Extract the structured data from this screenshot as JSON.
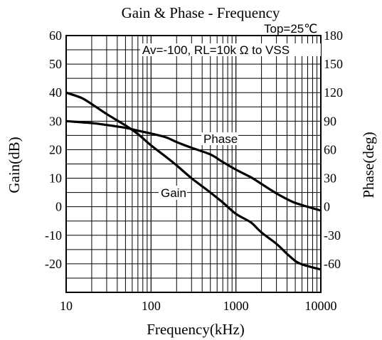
{
  "chart_data": {
    "type": "line",
    "title": "Gain & Phase - Frequency",
    "annotations": {
      "condition_top": "Top=25℃",
      "condition_av": "Av=-100,  RL=10k Ω to VSS",
      "series_label_phase": "Phase",
      "series_label_gain": "Gain"
    },
    "xlabel": "Frequency(kHz)",
    "ylabel_left": "Gain(dB)",
    "ylabel_right": "Phase(deg)",
    "x_scale": "log",
    "xlim": [
      10,
      10000
    ],
    "ylim_left": [
      -30,
      60
    ],
    "ylim_right": [
      -90,
      180
    ],
    "x_ticks": [
      "10",
      "100",
      "1000",
      "10000"
    ],
    "y_ticks_left": [
      "60",
      "50",
      "40",
      "30",
      "20",
      "10",
      "0",
      "-10",
      "-20"
    ],
    "y_ticks_right": [
      "180",
      "150",
      "120",
      "90",
      "60",
      "30",
      "0",
      "-30",
      "-60"
    ],
    "grid": true,
    "series": [
      {
        "name": "Gain",
        "axis": "left",
        "points": [
          [
            10,
            40
          ],
          [
            15,
            38.2
          ],
          [
            20,
            36
          ],
          [
            30,
            32.5
          ],
          [
            50,
            28.5
          ],
          [
            70,
            25.5
          ],
          [
            100,
            21.5
          ],
          [
            150,
            17.5
          ],
          [
            200,
            14.5
          ],
          [
            300,
            10
          ],
          [
            500,
            5
          ],
          [
            700,
            1.5
          ],
          [
            1000,
            -2.5
          ],
          [
            1500,
            -5.5
          ],
          [
            2000,
            -9
          ],
          [
            3000,
            -13
          ],
          [
            4000,
            -16.5
          ],
          [
            5000,
            -19
          ],
          [
            6000,
            -20.2
          ],
          [
            7000,
            -20.8
          ],
          [
            10000,
            -22
          ]
        ]
      },
      {
        "name": "Phase",
        "axis": "right",
        "points": [
          [
            10,
            90
          ],
          [
            20,
            88
          ],
          [
            30,
            86
          ],
          [
            50,
            83
          ],
          [
            70,
            80
          ],
          [
            100,
            77
          ],
          [
            150,
            73
          ],
          [
            200,
            68
          ],
          [
            300,
            62
          ],
          [
            500,
            55
          ],
          [
            700,
            47
          ],
          [
            1000,
            39
          ],
          [
            1500,
            31
          ],
          [
            2000,
            24
          ],
          [
            3000,
            14
          ],
          [
            4000,
            8
          ],
          [
            5000,
            4
          ],
          [
            7000,
            0
          ],
          [
            10000,
            -4
          ]
        ]
      }
    ]
  }
}
